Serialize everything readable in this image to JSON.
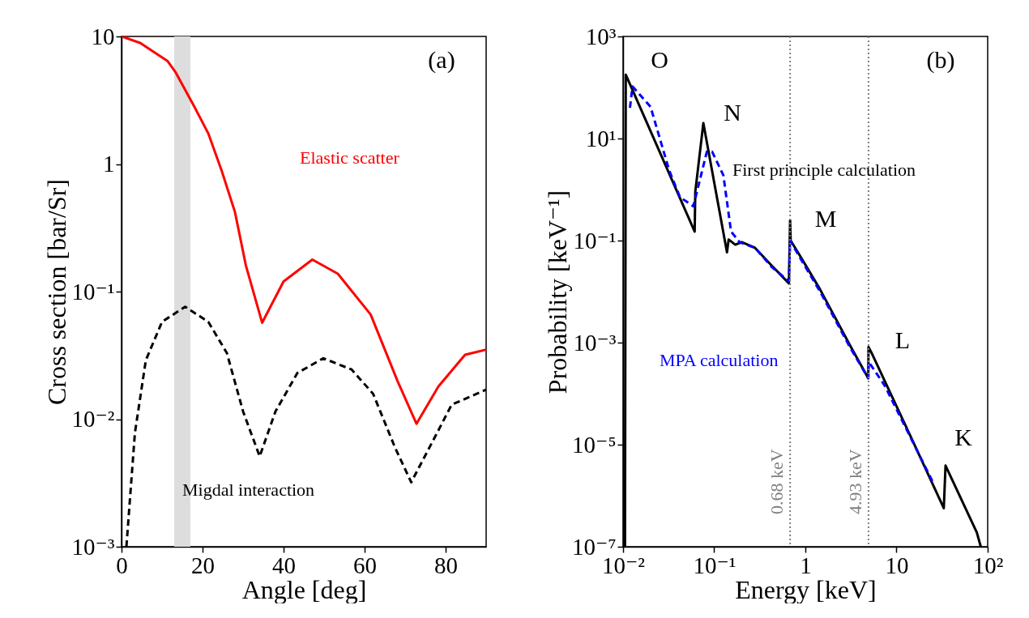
{
  "chart_data": [
    {
      "type": "line",
      "xlabel": "Angle [deg]",
      "ylabel": "Cross section [bar/Sr]",
      "xlim": [
        0,
        90
      ],
      "xticks": [
        0,
        20,
        40,
        60,
        80
      ],
      "ylim": [
        0.001,
        10
      ],
      "yticks": [
        {
          "value": 0.001,
          "label": "10⁻³"
        },
        {
          "value": 0.01,
          "label": "10⁻²"
        },
        {
          "value": 0.1,
          "label": "10⁻¹"
        },
        1,
        10
      ],
      "log": "y",
      "grid": false,
      "bands": [
        {
          "axis": "x",
          "from": 13,
          "to": 17,
          "color": "#dddddd"
        }
      ],
      "annotations": [
        "(a)"
      ],
      "series": [
        {
          "name": "Elastic scatter",
          "color": "#ff0000",
          "line_style": "solid",
          "x": [
            0,
            4.6,
            11.4,
            13.4,
            18,
            21.4,
            24.7,
            28,
            30.7,
            34.7,
            40,
            47.1,
            53.4,
            61.5,
            68.1,
            72.8,
            78.2,
            84.8,
            90
          ],
          "values": [
            10,
            8.9,
            6.4,
            5.2,
            2.8,
            1.74,
            0.89,
            0.42,
            0.16,
            0.057,
            0.12,
            0.178,
            0.138,
            0.066,
            0.02,
            0.0092,
            0.018,
            0.032,
            0.035
          ]
        },
        {
          "name": "Migdal interaction",
          "color": "#000000",
          "line_style": "dashed",
          "x": [
            1.2,
            3.3,
            6,
            10,
            15.7,
            21.4,
            26,
            30,
            34.1,
            38,
            43.4,
            49.8,
            56.8,
            62.1,
            67.5,
            71.5,
            76.8,
            81.5,
            90
          ],
          "values": [
            0.001,
            0.0078,
            0.029,
            0.058,
            0.076,
            0.058,
            0.033,
            0.0115,
            0.0051,
            0.0115,
            0.023,
            0.03,
            0.0245,
            0.0158,
            0.006,
            0.0032,
            0.0067,
            0.013,
            0.017
          ]
        }
      ]
    },
    {
      "type": "line",
      "xlabel": "Energy [keV]",
      "ylabel": "Probability [keV⁻¹]",
      "xlim": [
        0.01,
        100
      ],
      "xticks": [
        {
          "value": 0.01,
          "label": "10⁻²"
        },
        {
          "value": 0.1,
          "label": "10⁻¹"
        },
        1,
        10,
        {
          "value": 100,
          "label": "10²"
        }
      ],
      "ylim": [
        1e-07,
        1000
      ],
      "yticks": [
        {
          "value": 1e-07,
          "label": "10⁻⁷"
        },
        {
          "value": 1e-05,
          "label": "10⁻⁵"
        },
        {
          "value": 0.001,
          "label": "10⁻³"
        },
        {
          "value": 0.1,
          "label": "10⁻¹"
        },
        {
          "value": 10,
          "label": "10¹"
        },
        {
          "value": 1000,
          "label": "10³"
        }
      ],
      "log": "xy",
      "grid": false,
      "ref_lines": [
        {
          "axis": "x",
          "value": 0.68,
          "label": "0.68 keV",
          "color": "#808080",
          "line_style": "dotted"
        },
        {
          "axis": "x",
          "value": 4.93,
          "label": "4.93 keV",
          "color": "#808080",
          "line_style": "dotted"
        }
      ],
      "annotations": [
        "(b)",
        "O",
        "N",
        "M",
        "L",
        "K"
      ],
      "series": [
        {
          "name": "First principle calculation",
          "color": "#000000",
          "line_style": "solid",
          "x": [
            0.0105,
            0.0107,
            0.061,
            0.062,
            0.076,
            0.138,
            0.144,
            0.17,
            0.2,
            0.28,
            0.43,
            0.66,
            0.68,
            0.69,
            0.9,
            1.45,
            3.1,
            4.9,
            4.93,
            5.3,
            14.7,
            33,
            34.5,
            76,
            84
          ],
          "values": [
            1e-07,
            178,
            0.15,
            0.91,
            20,
            0.059,
            0.105,
            0.083,
            0.093,
            0.072,
            0.032,
            0.0145,
            0.25,
            0.1,
            0.046,
            0.011,
            0.00087,
            0.0002,
            0.00082,
            0.00064,
            1.3e-05,
            5.7e-07,
            3.9e-06,
            1.9e-07,
            1e-07
          ]
        },
        {
          "name": "MPA calculation",
          "color": "#0000ff",
          "line_style": "dashed",
          "x": [
            0.0119,
            0.0127,
            0.02,
            0.032,
            0.042,
            0.059,
            0.083,
            0.095,
            0.126,
            0.153,
            0.19,
            0.28,
            0.43,
            0.66,
            0.68,
            0.9,
            1.45,
            3.1,
            4.9,
            4.95,
            7.4,
            25.6
          ],
          "values": [
            40,
            105,
            42,
            2.4,
            0.71,
            0.47,
            5.5,
            5.5,
            1.9,
            0.15,
            0.093,
            0.072,
            0.03,
            0.016,
            0.1,
            0.042,
            0.01,
            0.0008,
            0.0002,
            0.00042,
            0.000145,
            1.7e-06
          ]
        }
      ]
    }
  ]
}
